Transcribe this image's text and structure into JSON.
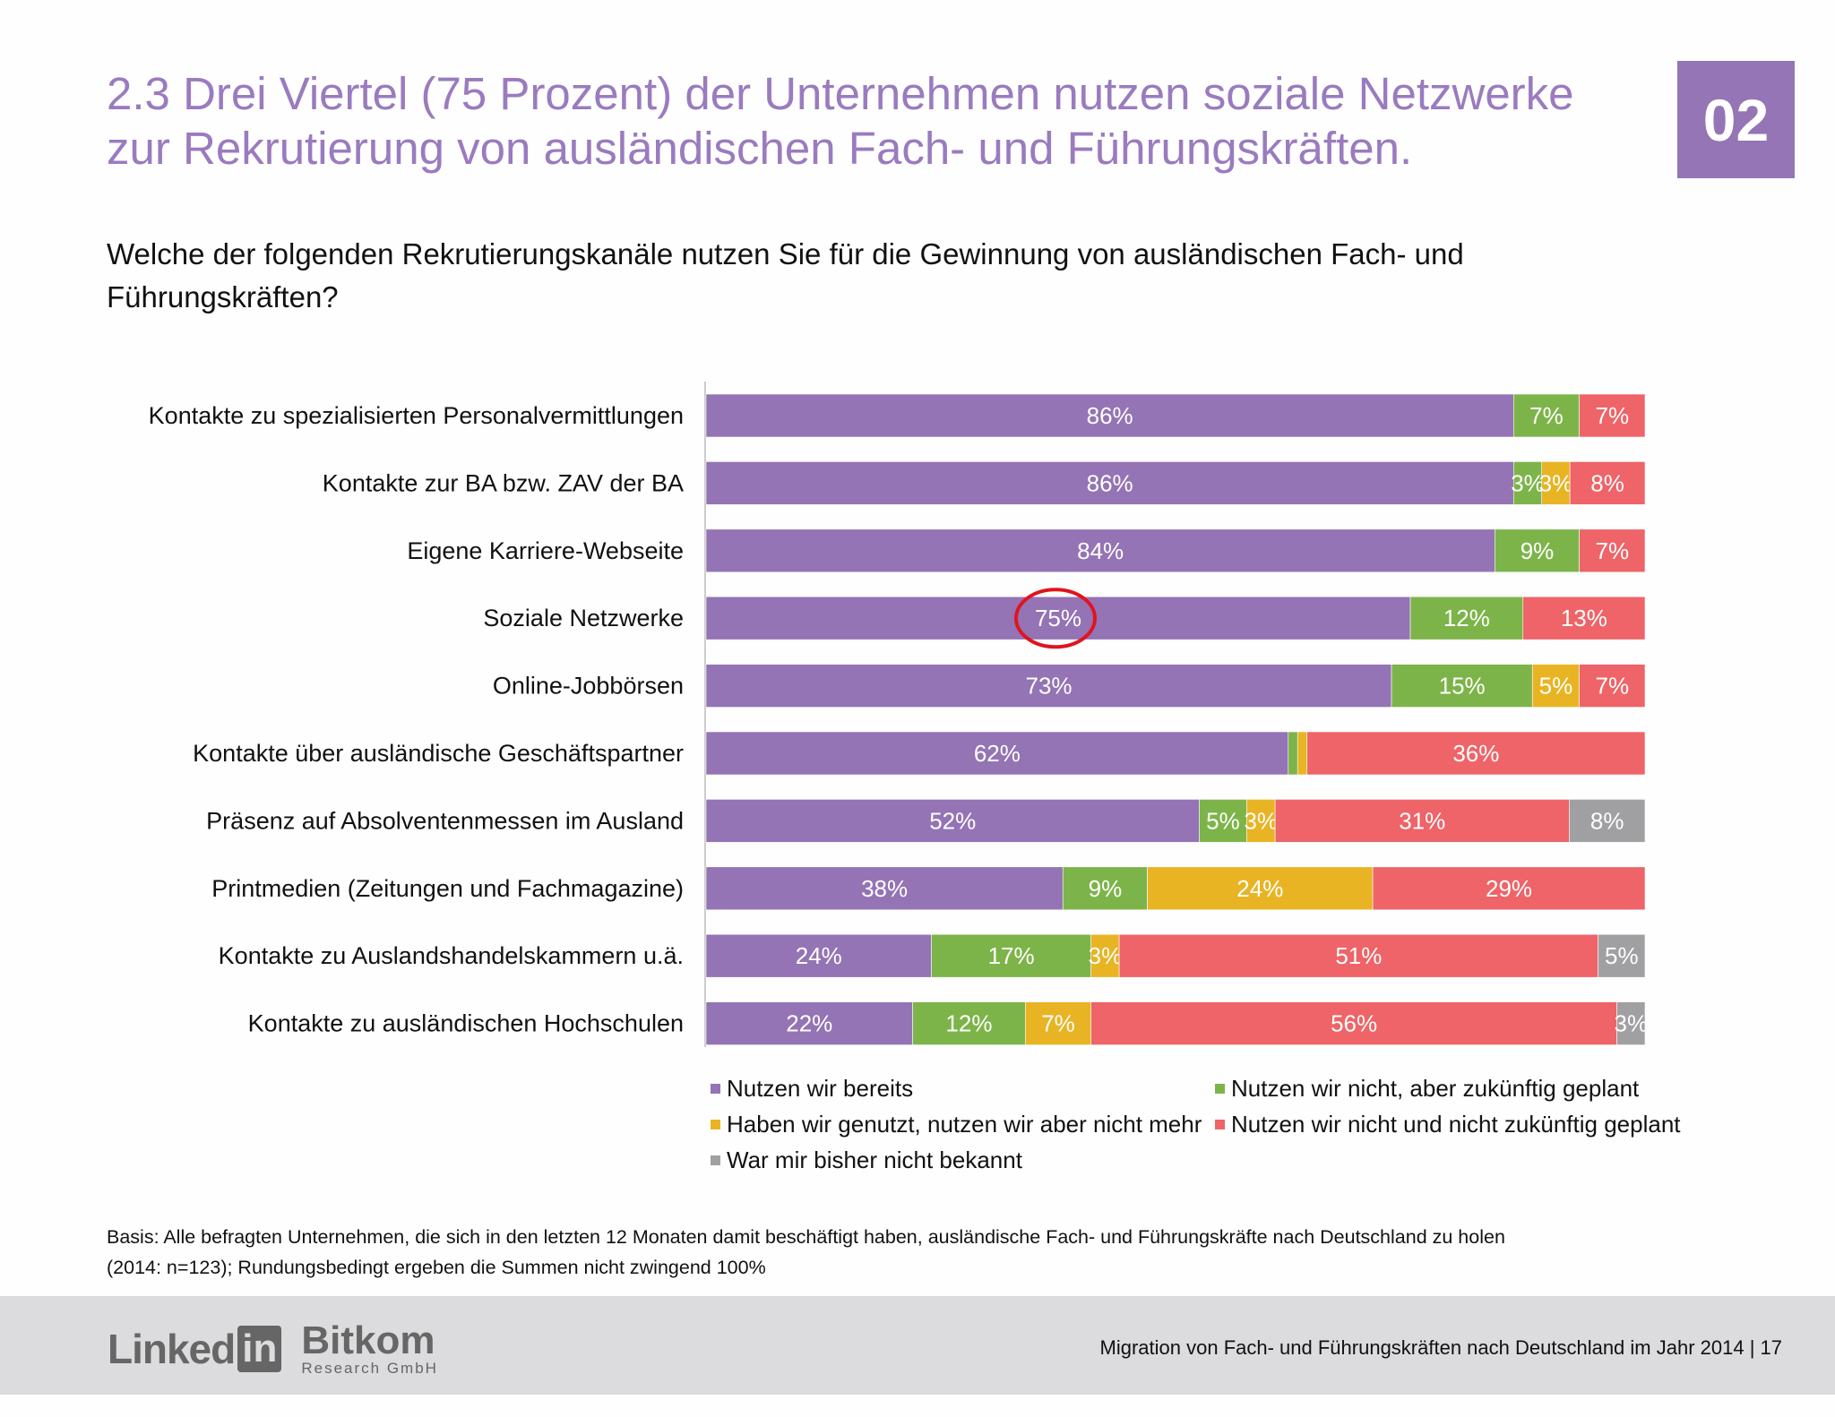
{
  "header": {
    "title_line1": "2.3 Drei Viertel (75 Prozent) der Unternehmen nutzen soziale Netzwerke",
    "title_line2": "zur Rekrutierung von ausländischen Fach- und Führungskräften.",
    "badge": "02",
    "question": "Welche der folgenden Rekrutierungskanäle nutzen Sie für die Gewinnung von ausländischen Fach- und Führungskräften?"
  },
  "colors": {
    "title": "#9a7bbf",
    "highlight_circle": "#e0141e"
  },
  "chart_data": {
    "type": "bar",
    "orientation": "horizontal",
    "stacked": true,
    "categories": [
      "Kontakte zu spezialisierten Personalvermittlungen",
      "Kontakte zur BA bzw. ZAV der BA",
      "Eigene Karriere-Webseite",
      "Soziale Netzwerke",
      "Online-Jobbörsen",
      "Kontakte über ausländische Geschäftspartner",
      "Präsenz auf Absolventenmessen im Ausland",
      "Printmedien (Zeitungen und Fachmagazine)",
      "Kontakte zu Auslandshandelskammern u.ä.",
      "Kontakte zu ausländischen Hochschulen"
    ],
    "series": [
      {
        "name": "Nutzen wir bereits",
        "color": "#9474b4",
        "values": [
          86,
          86,
          84,
          75,
          73,
          62,
          52,
          38,
          24,
          22
        ],
        "labels": [
          "86%",
          "86%",
          "84%",
          "75%",
          "73%",
          "62%",
          "52%",
          "38%",
          "24%",
          "22%"
        ]
      },
      {
        "name": "Nutzen wir nicht, aber zukünftig geplant",
        "color": "#7db44a",
        "values": [
          7,
          3,
          9,
          12,
          15,
          1,
          5,
          9,
          17,
          12
        ],
        "labels": [
          "7%",
          "3%",
          "9%",
          "12%",
          "15%",
          "",
          "5%",
          "9%",
          "17%",
          "12%"
        ]
      },
      {
        "name": "Haben wir genutzt, nutzen wir aber nicht mehr",
        "color": "#e8b424",
        "values": [
          0,
          3,
          0,
          0,
          5,
          1,
          3,
          24,
          3,
          7
        ],
        "labels": [
          "",
          "3%",
          "",
          "",
          "5%",
          "",
          "3%",
          "24%",
          "3%",
          "7%"
        ]
      },
      {
        "name": "Nutzen wir nicht und nicht zukünftig geplant",
        "color": "#ee6468",
        "values": [
          7,
          8,
          7,
          13,
          7,
          36,
          31,
          29,
          51,
          56
        ],
        "labels": [
          "7%",
          "8%",
          "7%",
          "13%",
          "7%",
          "36%",
          "31%",
          "29%",
          "51%",
          "56%"
        ]
      },
      {
        "name": "War mir bisher nicht bekannt",
        "color": "#a0a0a2",
        "values": [
          0,
          0,
          0,
          0,
          0,
          0,
          8,
          0,
          5,
          3
        ],
        "labels": [
          "",
          "",
          "",
          "",
          "",
          "",
          "8%",
          "",
          "5%",
          "3%"
        ]
      }
    ],
    "highlight": {
      "category_index": 3,
      "series_index": 0
    },
    "legend_position": "bottom",
    "grid": false
  },
  "footnote": {
    "line1": "Basis: Alle befragten Unternehmen, die sich in den letzten 12 Monaten damit beschäftigt haben, ausländische Fach- und Führungskräfte nach Deutschland zu holen",
    "line2": "(2014: n=123); Rundungsbedingt ergeben die Summen nicht zwingend 100%"
  },
  "footer": {
    "text": "Migration von Fach- und Führungskräften nach Deutschland im Jahr 2014  |  17",
    "logo_linkedin": "Linked",
    "logo_linkedin_box": "in",
    "logo_bitkom": "Bitkom",
    "logo_bitkom_sub": "Research GmbH"
  }
}
